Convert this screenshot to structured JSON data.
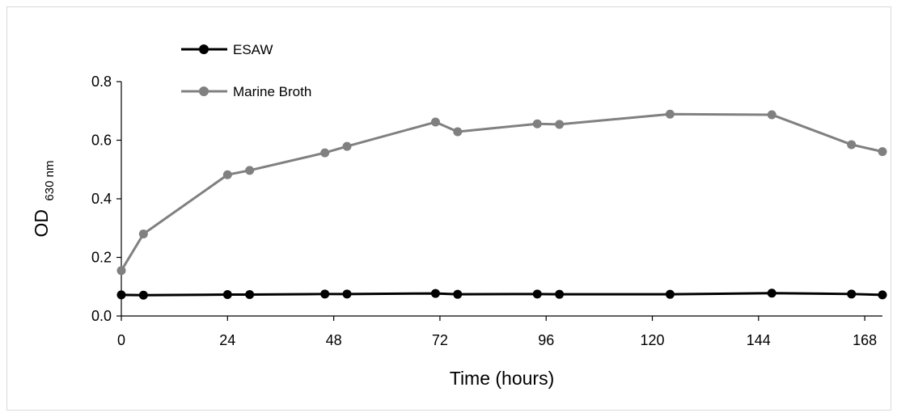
{
  "chart_data": {
    "type": "line",
    "xlabel": "Time (hours)",
    "ylabel": "OD",
    "ylabel_subscript": "630 nm",
    "xlim": [
      0,
      172
    ],
    "ylim": [
      0,
      0.8
    ],
    "xticks": [
      "0",
      "24",
      "48",
      "72",
      "96",
      "120",
      "144",
      "168"
    ],
    "yticks": [
      "0.0",
      "0.2",
      "0.4",
      "0.6",
      "0.8"
    ],
    "grid": false,
    "legend": "top-left",
    "series": [
      {
        "name": "ESAW",
        "color": "#000000",
        "x": [
          0,
          5,
          24,
          29,
          46,
          51,
          71,
          76,
          94,
          99,
          124,
          147,
          165,
          172
        ],
        "y": [
          0.072,
          0.071,
          0.073,
          0.073,
          0.075,
          0.075,
          0.077,
          0.074,
          0.075,
          0.074,
          0.074,
          0.078,
          0.075,
          0.072
        ]
      },
      {
        "name": "Marine Broth",
        "color": "#808080",
        "errorbar_color": "#5cb85c",
        "x": [
          0,
          5,
          24,
          29,
          46,
          51,
          71,
          76,
          94,
          99,
          124,
          147,
          165,
          172
        ],
        "y": [
          0.155,
          0.28,
          0.482,
          0.497,
          0.557,
          0.579,
          0.662,
          0.629,
          0.656,
          0.654,
          0.689,
          0.687,
          0.585,
          0.561
        ],
        "err": [
          0.004,
          0.01,
          0.005,
          0.004,
          0.008,
          0.004,
          0.007,
          0.009,
          0.008,
          0.004,
          0.005,
          0.004,
          0.009,
          0.004
        ]
      }
    ]
  }
}
